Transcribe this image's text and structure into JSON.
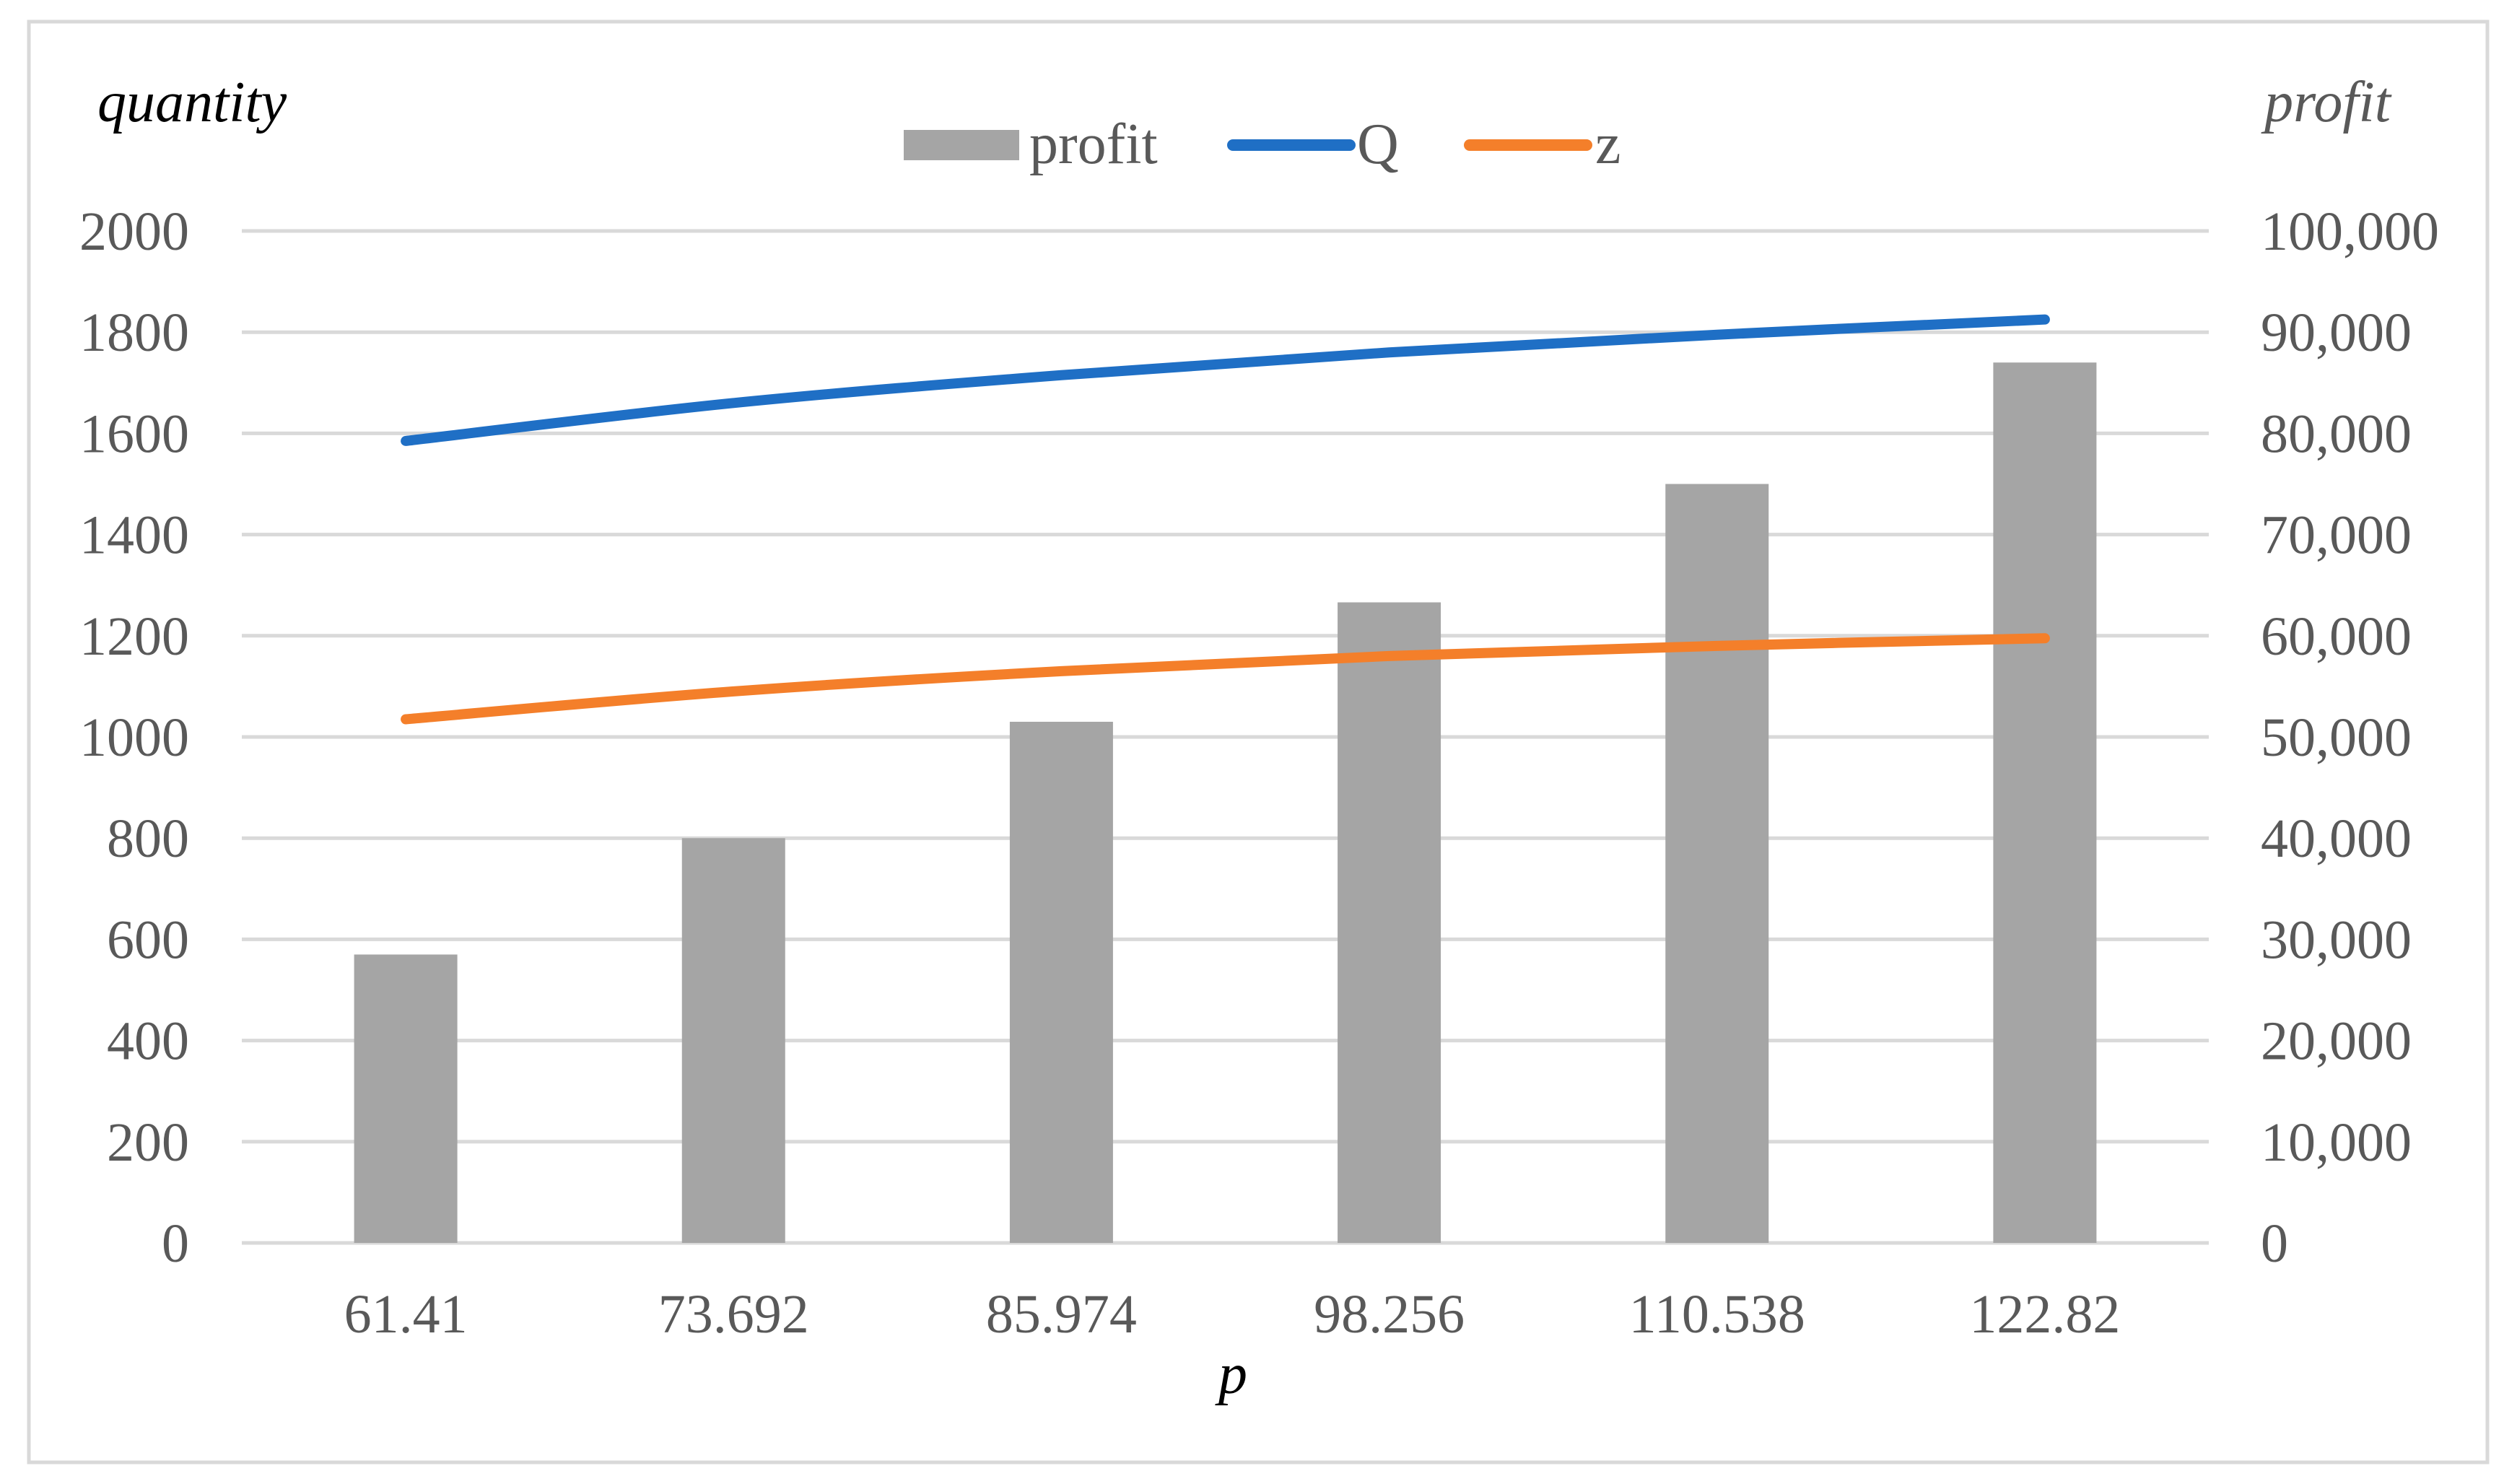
{
  "chart_data": {
    "type": "bar",
    "xlabel": "p",
    "ylabel": "quantity",
    "y2label": "profit",
    "categories": [
      "61.41",
      "73.692",
      "85.974",
      "98.256",
      "110.538",
      "122.82"
    ],
    "series": [
      {
        "name": "profit",
        "type": "bar",
        "axis": "right",
        "color": "#a5a5a5",
        "values": [
          28500,
          40000,
          51500,
          63300,
          75000,
          87000
        ]
      },
      {
        "name": "Q",
        "type": "line",
        "axis": "left",
        "color": "#1f6fc5",
        "values": [
          1585,
          1660,
          1715,
          1760,
          1795,
          1825
        ]
      },
      {
        "name": "z",
        "type": "line",
        "axis": "left",
        "color": "#f47f2a",
        "values": [
          1035,
          1090,
          1130,
          1160,
          1180,
          1195
        ]
      }
    ],
    "ylim": [
      0,
      2000
    ],
    "y2lim": [
      0,
      100000
    ],
    "yticks": [
      "0",
      "200",
      "400",
      "600",
      "800",
      "1000",
      "1200",
      "1400",
      "1600",
      "1800",
      "2000"
    ],
    "y2ticks": [
      "0",
      "10,000",
      "20,000",
      "30,000",
      "40,000",
      "50,000",
      "60,000",
      "70,000",
      "80,000",
      "90,000",
      "100,000"
    ],
    "grid": true,
    "legend": "top-center"
  }
}
